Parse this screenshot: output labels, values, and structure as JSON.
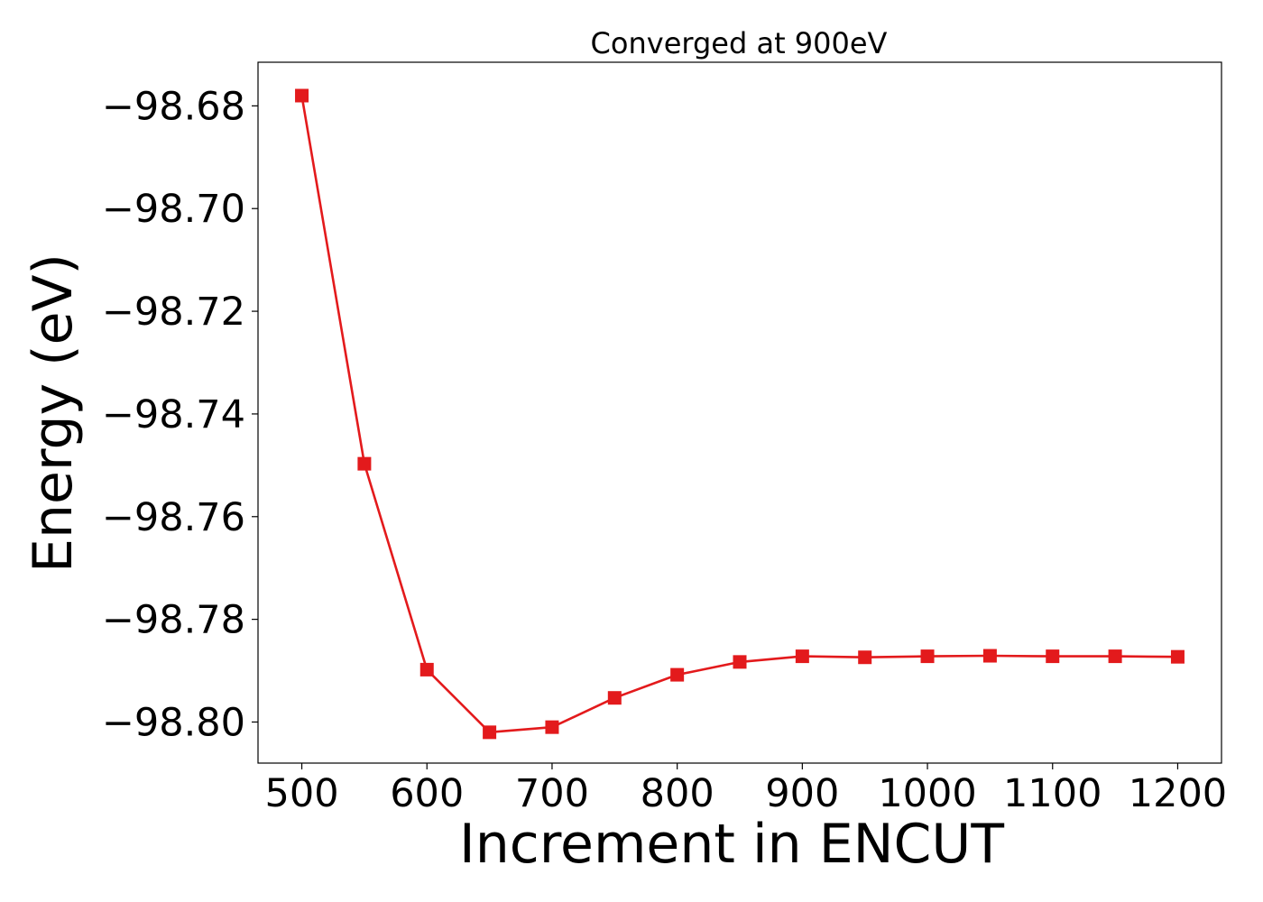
{
  "chart_data": {
    "type": "line",
    "title": "Converged at 900eV",
    "xlabel": "Increment in ENCUT",
    "ylabel": "Energy (eV)",
    "xlim": [
      465,
      1235
    ],
    "ylim": [
      -98.808,
      -98.6715
    ],
    "xticks": [
      500,
      600,
      700,
      800,
      900,
      1000,
      1100,
      1200
    ],
    "xtick_labels": [
      "500",
      "600",
      "700",
      "800",
      "900",
      "1000",
      "1100",
      "1200"
    ],
    "yticks": [
      -98.68,
      -98.7,
      -98.72,
      -98.74,
      -98.76,
      -98.78,
      -98.8
    ],
    "ytick_labels": [
      "−98.68",
      "−98.70",
      "−98.72",
      "−98.74",
      "−98.76",
      "−98.78",
      "−98.80"
    ],
    "grid": false,
    "legend": "none",
    "series": [
      {
        "color": "#e31a1c",
        "marker": "square",
        "x": [
          500,
          550,
          600,
          650,
          700,
          750,
          800,
          850,
          900,
          950,
          1000,
          1050,
          1100,
          1150,
          1200
        ],
        "y": [
          -98.678,
          -98.7497,
          -98.7898,
          -98.802,
          -98.801,
          -98.7953,
          -98.7908,
          -98.7883,
          -98.7872,
          -98.7874,
          -98.7872,
          -98.7871,
          -98.7872,
          -98.7872,
          -98.7873
        ]
      }
    ]
  }
}
